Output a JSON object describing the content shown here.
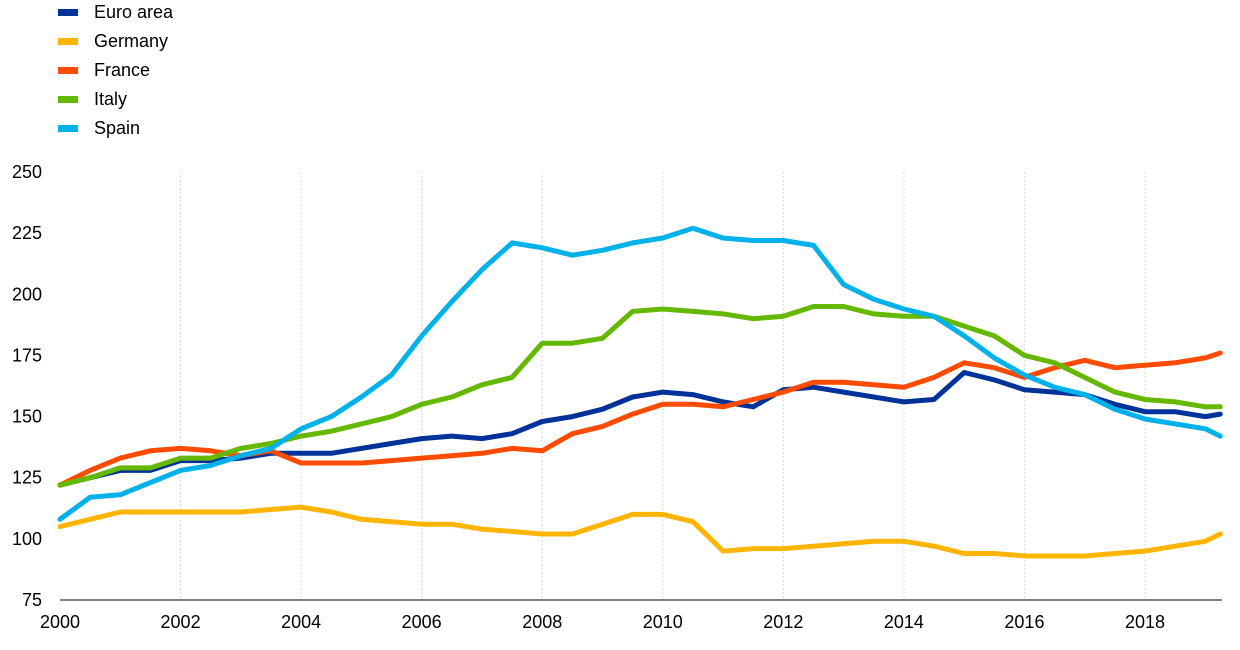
{
  "chart_data": {
    "type": "line",
    "title": "",
    "xlabel": "",
    "ylabel": "",
    "xlim": [
      2000,
      2019.25
    ],
    "ylim": [
      75,
      250
    ],
    "yticks": [
      75,
      100,
      125,
      150,
      175,
      200,
      225,
      250
    ],
    "xticks": [
      2000,
      2002,
      2004,
      2006,
      2008,
      2010,
      2012,
      2014,
      2016,
      2018
    ],
    "grid": "vertical",
    "legend_position": "top-left",
    "x": [
      2000,
      2000.5,
      2001,
      2001.5,
      2002,
      2002.5,
      2003,
      2003.5,
      2004,
      2004.5,
      2005,
      2005.5,
      2006,
      2006.5,
      2007,
      2007.5,
      2008,
      2008.5,
      2009,
      2009.5,
      2010,
      2010.5,
      2011,
      2011.5,
      2012,
      2012.5,
      2013,
      2013.5,
      2014,
      2014.5,
      2015,
      2015.5,
      2016,
      2016.5,
      2017,
      2017.5,
      2018,
      2018.5,
      2019,
      2019.25
    ],
    "series": [
      {
        "name": "Euro area",
        "color": "#003299",
        "values": [
          122,
          125,
          128,
          128,
          132,
          132,
          133,
          135,
          135,
          135,
          137,
          139,
          141,
          142,
          141,
          143,
          148,
          150,
          153,
          158,
          160,
          159,
          156,
          154,
          161,
          162,
          160,
          158,
          156,
          157,
          168,
          165,
          161,
          160,
          159,
          155,
          152,
          152,
          150,
          151
        ]
      },
      {
        "name": "Germany",
        "color": "#FFB400",
        "values": [
          105,
          108,
          111,
          111,
          111,
          111,
          111,
          112,
          113,
          111,
          108,
          107,
          106,
          106,
          104,
          103,
          102,
          102,
          106,
          110,
          110,
          107,
          95,
          96,
          96,
          97,
          98,
          99,
          99,
          97,
          94,
          94,
          93,
          93,
          93,
          94,
          95,
          97,
          99,
          102
        ]
      },
      {
        "name": "France",
        "color": "#FF4B00",
        "values": [
          122,
          128,
          133,
          136,
          137,
          136,
          134,
          136,
          131,
          131,
          131,
          132,
          133,
          134,
          135,
          137,
          136,
          143,
          146,
          151,
          155,
          155,
          154,
          157,
          160,
          164,
          164,
          163,
          162,
          166,
          172,
          170,
          166,
          170,
          173,
          170,
          171,
          172,
          174,
          176
        ]
      },
      {
        "name": "Italy",
        "color": "#65B800",
        "values": [
          122,
          125,
          129,
          129,
          133,
          133,
          137,
          139,
          142,
          144,
          147,
          150,
          155,
          158,
          163,
          166,
          180,
          180,
          182,
          193,
          194,
          193,
          192,
          190,
          191,
          195,
          195,
          192,
          191,
          191,
          187,
          183,
          175,
          172,
          166,
          160,
          157,
          156,
          154,
          154
        ]
      },
      {
        "name": "Spain",
        "color": "#00B1EA",
        "values": [
          108,
          117,
          118,
          123,
          128,
          130,
          134,
          137,
          145,
          150,
          158,
          167,
          183,
          197,
          210,
          221,
          219,
          216,
          218,
          221,
          223,
          227,
          223,
          222,
          222,
          220,
          204,
          198,
          194,
          191,
          183,
          174,
          167,
          162,
          159,
          153,
          149,
          147,
          145,
          142
        ]
      }
    ]
  }
}
